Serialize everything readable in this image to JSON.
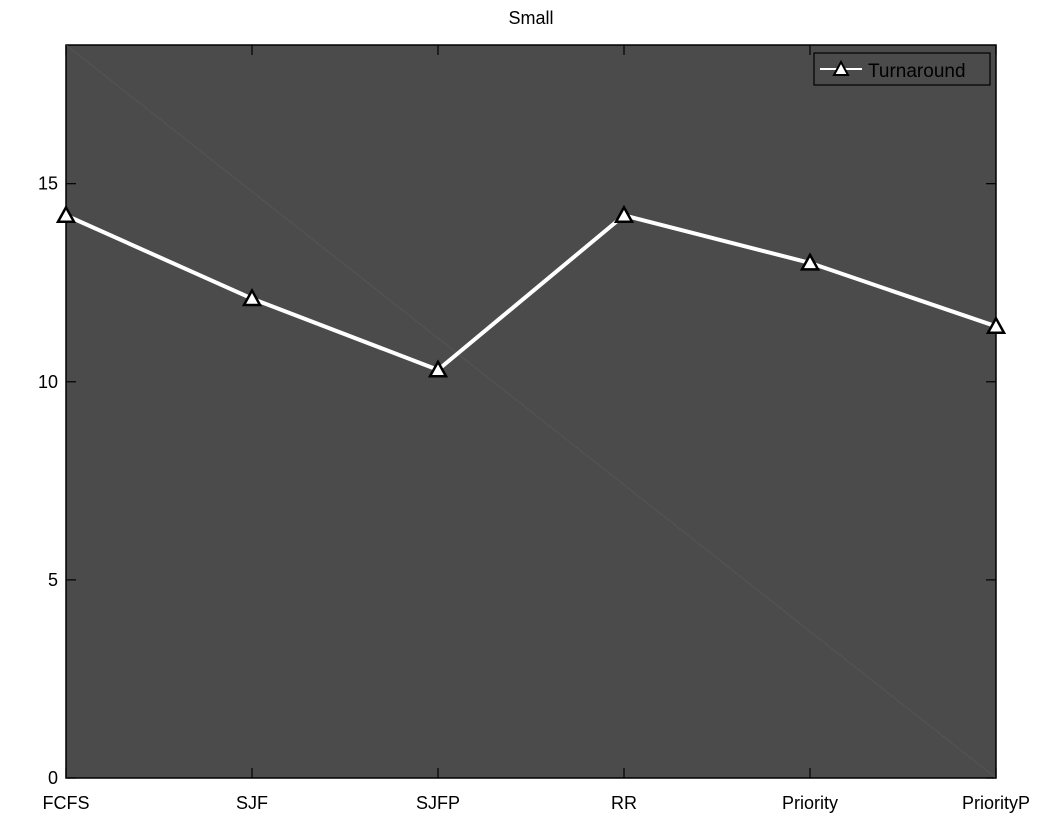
{
  "chart_data": {
    "type": "line",
    "title": "Small",
    "xlabel": "",
    "ylabel": "",
    "categories": [
      "FCFS",
      "SJF",
      "SJFP",
      "RR",
      "Priority",
      "PriorityP"
    ],
    "series": [
      {
        "name": "Turnaround",
        "values": [
          14.2,
          12.1,
          10.3,
          14.2,
          13.0,
          11.4
        ],
        "color": "#ffffff",
        "marker": "triangle"
      }
    ],
    "ylim": [
      0,
      18.5
    ],
    "yticks": [
      0,
      5,
      10,
      15
    ],
    "ytick_labels": [
      "0",
      "5",
      "10",
      "15"
    ],
    "grid": false,
    "legend_position": "top-right",
    "plot_background": "#4b4b4b",
    "axis_color": "#000000"
  }
}
